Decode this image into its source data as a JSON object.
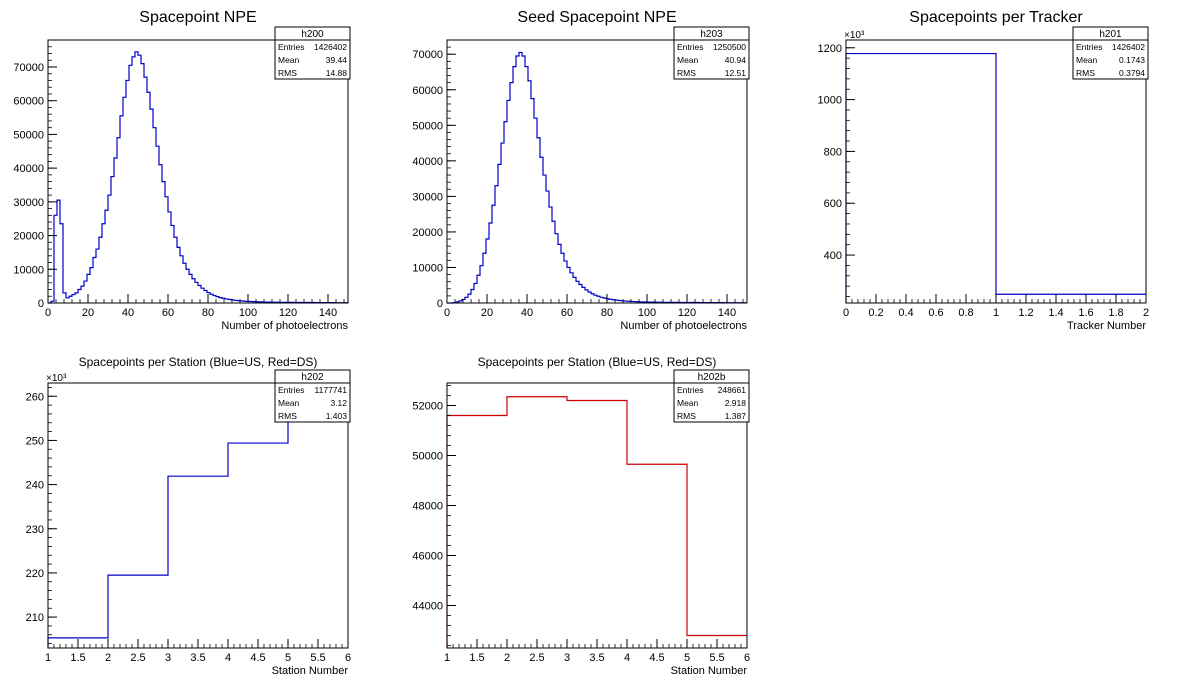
{
  "chart_data": [
    {
      "id": "h200",
      "type": "histogram",
      "title": "Spacepoint NPE",
      "xlabel": "Number of photoelectrons",
      "ylabel": "",
      "xlim": [
        0,
        150
      ],
      "ylim": [
        0,
        78000
      ],
      "x_ticks": [
        0,
        20,
        40,
        60,
        80,
        100,
        120,
        140
      ],
      "y_ticks": [
        0,
        10000,
        20000,
        30000,
        40000,
        50000,
        60000,
        70000
      ],
      "y_multiplier": "",
      "color": "#0000cc",
      "bin_width": 1.5,
      "bin_start": 0,
      "values": [
        0,
        500,
        26000,
        30500,
        23500,
        3000,
        1500,
        2000,
        2500,
        3000,
        4000,
        5000,
        6500,
        8500,
        10500,
        13500,
        16000,
        19500,
        23500,
        27500,
        32000,
        37500,
        43000,
        49000,
        55500,
        61000,
        66000,
        70500,
        73000,
        74500,
        73500,
        71000,
        67000,
        62500,
        57500,
        52000,
        46500,
        41000,
        36000,
        31500,
        27000,
        23000,
        19500,
        16500,
        14000,
        11800,
        10000,
        8500,
        7200,
        6100,
        5200,
        4400,
        3700,
        3100,
        2600,
        2200,
        1900,
        1600,
        1400,
        1200,
        1050,
        920,
        800,
        700,
        620,
        550,
        490,
        440,
        400,
        360,
        330,
        300,
        280,
        260,
        240,
        230,
        220,
        210,
        200,
        190,
        180,
        175,
        170,
        165,
        160,
        155,
        150,
        145,
        140,
        135,
        130,
        125,
        120,
        115,
        110,
        105,
        100,
        95,
        90,
        85
      ],
      "stats": {
        "name": "h200",
        "rows": [
          [
            "Entries",
            "1426402"
          ],
          [
            "Mean",
            "39.44"
          ],
          [
            "RMS",
            "14.88"
          ]
        ]
      }
    },
    {
      "id": "h203",
      "type": "histogram",
      "title": "Seed Spacepoint NPE",
      "xlabel": "Number of photoelectrons",
      "ylabel": "",
      "xlim": [
        0,
        150
      ],
      "ylim": [
        0,
        74000
      ],
      "x_ticks": [
        0,
        20,
        40,
        60,
        80,
        100,
        120,
        140
      ],
      "y_ticks": [
        0,
        10000,
        20000,
        30000,
        40000,
        50000,
        60000,
        70000
      ],
      "y_multiplier": "",
      "color": "#0000cc",
      "bin_width": 1.5,
      "bin_start": 0,
      "values": [
        0,
        0,
        100,
        300,
        600,
        1000,
        1600,
        2500,
        3800,
        5500,
        7800,
        10500,
        14000,
        18000,
        22500,
        27500,
        33000,
        39000,
        45000,
        51000,
        57000,
        62000,
        66500,
        69500,
        70500,
        69500,
        66500,
        62500,
        57500,
        52000,
        46500,
        41000,
        36000,
        31500,
        27000,
        23000,
        19500,
        16500,
        14000,
        11800,
        10000,
        8500,
        7200,
        6100,
        5200,
        4400,
        3700,
        3100,
        2600,
        2200,
        1900,
        1600,
        1400,
        1200,
        1050,
        920,
        800,
        700,
        620,
        550,
        490,
        440,
        400,
        360,
        330,
        300,
        280,
        260,
        240,
        230,
        220,
        210,
        200,
        190,
        180,
        175,
        170,
        165,
        160,
        155,
        150,
        145,
        140,
        135,
        130,
        125,
        120,
        115,
        110,
        105,
        100,
        95,
        90,
        85,
        80,
        75,
        70,
        65,
        60,
        55
      ],
      "stats": {
        "name": "h203",
        "rows": [
          [
            "Entries",
            "1250500"
          ],
          [
            "Mean",
            "40.94"
          ],
          [
            "RMS",
            "12.51"
          ]
        ]
      }
    },
    {
      "id": "h201",
      "type": "histogram",
      "title": "Spacepoints per Tracker",
      "xlabel": "Tracker Number",
      "ylabel": "",
      "xlim": [
        0,
        2
      ],
      "ylim": [
        215,
        1230
      ],
      "x_ticks": [
        0,
        0.2,
        0.4,
        0.6,
        0.8,
        1,
        1.2,
        1.4,
        1.6,
        1.8,
        2
      ],
      "y_ticks": [
        400,
        600,
        800,
        1000,
        1200
      ],
      "y_multiplier": "×10³",
      "color": "#0000cc",
      "bin_width": 1,
      "bin_start": 0,
      "values": [
        1177.741,
        248.661
      ],
      "stats": {
        "name": "h201",
        "rows": [
          [
            "Entries",
            "1426402"
          ],
          [
            "Mean",
            "0.1743"
          ],
          [
            "RMS",
            "0.3794"
          ]
        ]
      }
    },
    {
      "id": "h202",
      "type": "histogram",
      "title": "Spacepoints per Station (Blue=US, Red=DS)",
      "xlabel": "Station Number",
      "ylabel": "",
      "xlim": [
        1,
        6
      ],
      "ylim": [
        203,
        263
      ],
      "x_ticks": [
        1,
        1.5,
        2,
        2.5,
        3,
        3.5,
        4,
        4.5,
        5,
        5.5,
        6
      ],
      "y_ticks": [
        210,
        220,
        230,
        240,
        250,
        260
      ],
      "y_multiplier": "×10³",
      "color": "#0000cc",
      "bin_width": 1,
      "bin_start": 1,
      "values": [
        205.3,
        219.5,
        241.9,
        249.4,
        261.2
      ],
      "stats": {
        "name": "h202",
        "rows": [
          [
            "Entries",
            "1177741"
          ],
          [
            "Mean",
            "3.12"
          ],
          [
            "RMS",
            "1.403"
          ]
        ]
      }
    },
    {
      "id": "h202b",
      "type": "histogram",
      "title": "Spacepoints per Station (Blue=US, Red=DS)",
      "xlabel": "Station Number",
      "ylabel": "",
      "xlim": [
        1,
        6
      ],
      "ylim": [
        42300,
        52900
      ],
      "x_ticks": [
        1,
        1.5,
        2,
        2.5,
        3,
        3.5,
        4,
        4.5,
        5,
        5.5,
        6
      ],
      "y_ticks": [
        44000,
        46000,
        48000,
        50000,
        52000
      ],
      "y_multiplier": "",
      "color": "#cc0000",
      "bin_width": 1,
      "bin_start": 1,
      "values": [
        51600,
        52350,
        52200,
        49650,
        42800
      ],
      "stats": {
        "name": "h202b",
        "rows": [
          [
            "Entries",
            "248661"
          ],
          [
            "Mean",
            "2.918"
          ],
          [
            "RMS",
            "1.387"
          ]
        ]
      }
    }
  ]
}
